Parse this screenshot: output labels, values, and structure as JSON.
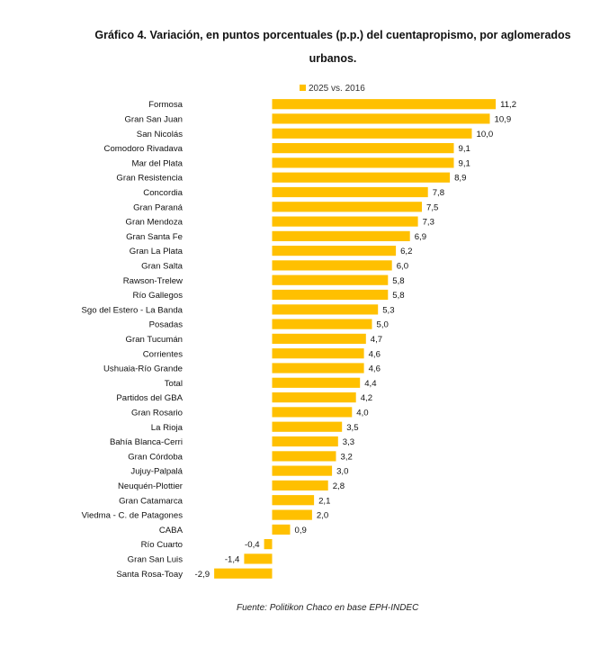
{
  "title_line1": "Gráfico 4. Variación, en puntos porcentuales (p.p.) del cuentapropismo, por aglomerados",
  "title_line2": "urbanos.",
  "source": "Fuente: Politikon Chaco en base EPH-INDEC",
  "colors": {
    "bar": "#FFC000",
    "text": "#111111"
  },
  "chart_data": {
    "type": "bar",
    "orientation": "horizontal",
    "title": "Gráfico 4. Variación, en puntos porcentuales (p.p.) del cuentapropismo, por aglomerados urbanos.",
    "legend": {
      "position": "top",
      "entries": [
        "2025 vs. 2016"
      ]
    },
    "series": [
      {
        "name": "2025 vs. 2016",
        "values": [
          11.2,
          10.9,
          10.0,
          9.1,
          9.1,
          8.9,
          7.8,
          7.5,
          7.3,
          6.9,
          6.2,
          6.0,
          5.8,
          5.8,
          5.3,
          5.0,
          4.7,
          4.6,
          4.6,
          4.4,
          4.2,
          4.0,
          3.5,
          3.3,
          3.2,
          3.0,
          2.8,
          2.1,
          2.0,
          0.9,
          -0.4,
          -1.4,
          -2.9
        ],
        "labels": [
          "11,2",
          "10,9",
          "10,0",
          "9,1",
          "9,1",
          "8,9",
          "7,8",
          "7,5",
          "7,3",
          "6,9",
          "6,2",
          "6,0",
          "5,8",
          "5,8",
          "5,3",
          "5,0",
          "4,7",
          "4,6",
          "4,6",
          "4,4",
          "4,2",
          "4,0",
          "3,5",
          "3,3",
          "3,2",
          "3,0",
          "2,8",
          "2,1",
          "2,0",
          "0,9",
          "-0,4",
          "-1,4",
          "-2,9"
        ]
      }
    ],
    "categories": [
      "Formosa",
      "Gran San Juan",
      "San Nicolás",
      "Comodoro Rivadava",
      "Mar del Plata",
      "Gran Resistencia",
      "Concordia",
      "Gran Paraná",
      "Gran Mendoza",
      "Gran Santa Fe",
      "Gran La Plata",
      "Gran Salta",
      "Rawson-Trelew",
      "Río Gallegos",
      "Sgo del Estero - La Banda",
      "Posadas",
      "Gran Tucumán",
      "Corrientes",
      "Ushuaia-Río Grande",
      "Total",
      "Partidos del GBA",
      "Gran Rosario",
      "La Rioja",
      "Bahía Blanca-Cerri",
      "Gran Córdoba",
      "Jujuy-Palpalá",
      "Neuquén-Plottier",
      "Gran Catamarca",
      "Viedma - C. de Patagones",
      "CABA",
      "Río Cuarto",
      "Gran San Luis",
      "Santa Rosa-Toay"
    ],
    "xlim": [
      -2.9,
      11.2
    ],
    "grid": false,
    "xlabel": "",
    "ylabel": ""
  }
}
